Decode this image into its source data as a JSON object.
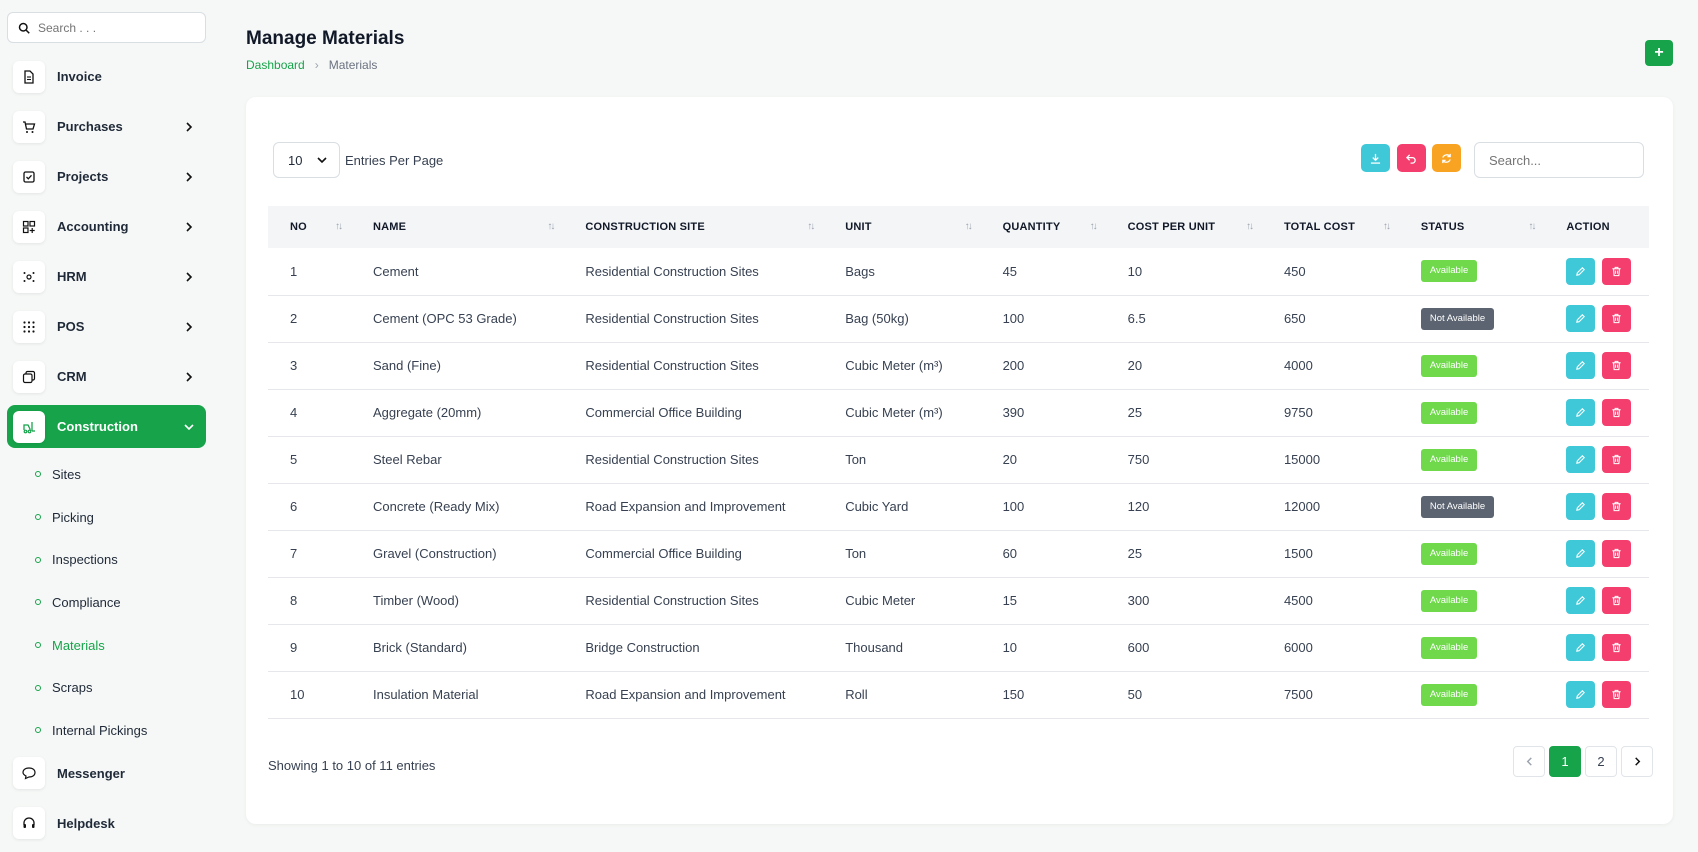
{
  "sidebar": {
    "search_placeholder": "Search . . .",
    "items": [
      {
        "label": "Invoice",
        "icon": "file-icon",
        "has_chevron": false
      },
      {
        "label": "Purchases",
        "icon": "cart-icon",
        "has_chevron": true
      },
      {
        "label": "Projects",
        "icon": "checkbox-icon",
        "has_chevron": true
      },
      {
        "label": "Accounting",
        "icon": "grid-plus-icon",
        "has_chevron": true
      },
      {
        "label": "HRM",
        "icon": "users-icon",
        "has_chevron": true
      },
      {
        "label": "POS",
        "icon": "dots-grid-icon",
        "has_chevron": true
      },
      {
        "label": "CRM",
        "icon": "layers-icon",
        "has_chevron": true
      },
      {
        "label": "Construction",
        "icon": "forklift-icon",
        "has_chevron": true,
        "active": true
      }
    ],
    "construction_sub": [
      "Sites",
      "Picking",
      "Inspections",
      "Compliance",
      "Materials",
      "Scraps",
      "Internal Pickings"
    ],
    "active_sub": "Materials",
    "bottom_items": [
      {
        "label": "Messenger",
        "icon": "chat-icon"
      },
      {
        "label": "Helpdesk",
        "icon": "headset-icon"
      }
    ]
  },
  "header": {
    "title": "Manage Materials",
    "breadcrumb": {
      "link": "Dashboard",
      "current": "Materials"
    },
    "add_label": "+"
  },
  "toolbar": {
    "entries_value": "10",
    "entries_label": "Entries Per Page",
    "search_placeholder": "Search..."
  },
  "table": {
    "columns": [
      "NO",
      "NAME",
      "CONSTRUCTION SITE",
      "UNIT",
      "QUANTITY",
      "COST PER UNIT",
      "TOTAL COST",
      "STATUS",
      "ACTION"
    ],
    "rows": [
      {
        "no": "1",
        "name": "Cement",
        "site": "Residential Construction Sites",
        "unit": "Bags",
        "qty": "45",
        "cpu": "10",
        "total": "450",
        "status": "Available"
      },
      {
        "no": "2",
        "name": "Cement (OPC 53 Grade)",
        "site": "Residential Construction Sites",
        "unit": "Bag (50kg)",
        "qty": "100",
        "cpu": "6.5",
        "total": "650",
        "status": "Not Available"
      },
      {
        "no": "3",
        "name": "Sand (Fine)",
        "site": "Residential Construction Sites",
        "unit": "Cubic Meter (m³)",
        "qty": "200",
        "cpu": "20",
        "total": "4000",
        "status": "Available"
      },
      {
        "no": "4",
        "name": "Aggregate (20mm)",
        "site": "Commercial Office Building",
        "unit": "Cubic Meter (m³)",
        "qty": "390",
        "cpu": "25",
        "total": "9750",
        "status": "Available"
      },
      {
        "no": "5",
        "name": "Steel Rebar",
        "site": "Residential Construction Sites",
        "unit": "Ton",
        "qty": "20",
        "cpu": "750",
        "total": "15000",
        "status": "Available"
      },
      {
        "no": "6",
        "name": "Concrete (Ready Mix)",
        "site": "Road Expansion and Improvement",
        "unit": "Cubic Yard",
        "qty": "100",
        "cpu": "120",
        "total": "12000",
        "status": "Not Available"
      },
      {
        "no": "7",
        "name": "Gravel (Construction)",
        "site": "Commercial Office Building",
        "unit": "Ton",
        "qty": "60",
        "cpu": "25",
        "total": "1500",
        "status": "Available"
      },
      {
        "no": "8",
        "name": "Timber (Wood)",
        "site": "Residential Construction Sites",
        "unit": "Cubic Meter",
        "qty": "15",
        "cpu": "300",
        "total": "4500",
        "status": "Available"
      },
      {
        "no": "9",
        "name": "Brick (Standard)",
        "site": "Bridge Construction",
        "unit": "Thousand",
        "qty": "10",
        "cpu": "600",
        "total": "6000",
        "status": "Available"
      },
      {
        "no": "10",
        "name": "Insulation Material",
        "site": "Road Expansion and Improvement",
        "unit": "Roll",
        "qty": "150",
        "cpu": "50",
        "total": "7500",
        "status": "Available"
      }
    ]
  },
  "footer": {
    "showing": "Showing 1 to 10 of 11 entries",
    "pages": [
      "1",
      "2"
    ],
    "current_page": "1"
  },
  "colors": {
    "accent": "#16a34a",
    "available": "#6fd94b",
    "not_available": "#5b6470",
    "edit": "#3ec8d8",
    "delete": "#f43f6e",
    "refresh": "#f9a322"
  }
}
